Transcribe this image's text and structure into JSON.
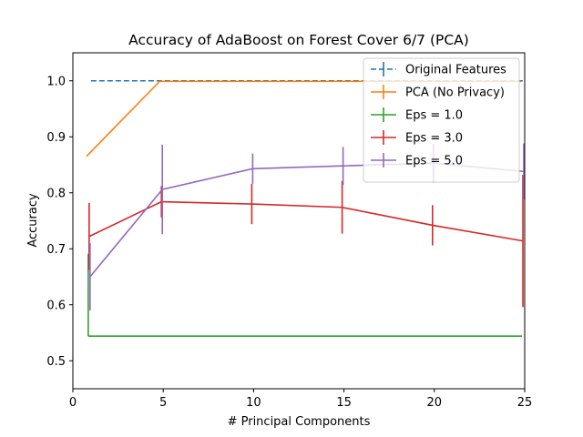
{
  "chart_data": {
    "type": "line",
    "title": "Accuracy of AdaBoost on Forest Cover 6/7 (PCA)",
    "xlabel": "# Principal Components",
    "ylabel": "Accuracy",
    "xlim": [
      0,
      25
    ],
    "ylim": [
      0.45,
      1.05
    ],
    "xticks": [
      0,
      5,
      10,
      15,
      20,
      25
    ],
    "yticks": [
      0.5,
      0.6,
      0.7,
      0.8,
      0.9,
      1.0
    ],
    "grid": false,
    "legend_position": "top-right",
    "series": [
      {
        "name": "Original Features",
        "style": "dashed",
        "color": "#1f77b4",
        "x": [
          1,
          5,
          10,
          15,
          20,
          25
        ],
        "y": [
          1.0,
          1.0,
          1.0,
          1.0,
          1.0,
          1.0
        ],
        "err": [
          0,
          0,
          0,
          0,
          0,
          0
        ]
      },
      {
        "name": "PCA (No Privacy)",
        "style": "solid",
        "color": "#ff7f0e",
        "x": [
          0.75,
          4.8,
          9.8,
          14.8,
          19.8,
          24.8
        ],
        "y": [
          0.865,
          0.999,
          0.999,
          0.999,
          0.999,
          0.999
        ],
        "err": [
          0,
          0,
          0,
          0,
          0,
          0
        ]
      },
      {
        "name": "Eps = 1.0",
        "style": "solid",
        "color": "#2ca02c",
        "x": [
          0.85,
          4.85,
          9.85,
          14.85,
          19.85,
          24.85
        ],
        "y": [
          0.544,
          0.544,
          0.544,
          0.544,
          0.544,
          0.544
        ],
        "err_low": [
          0,
          0,
          0,
          0,
          0,
          0
        ],
        "err_high": [
          0.147,
          0,
          0,
          0,
          0,
          0
        ]
      },
      {
        "name": "Eps = 3.0",
        "style": "solid",
        "color": "#d62728",
        "x": [
          0.9,
          4.9,
          9.9,
          14.9,
          19.9,
          24.9
        ],
        "y": [
          0.722,
          0.784,
          0.78,
          0.774,
          0.742,
          0.714
        ],
        "err": [
          0.06,
          0.028,
          0.036,
          0.047,
          0.036,
          0.118
        ]
      },
      {
        "name": "Eps = 5.0",
        "style": "solid",
        "color": "#9467bd",
        "x": [
          0.95,
          4.95,
          9.95,
          14.95,
          19.95,
          24.95
        ],
        "y": [
          0.65,
          0.806,
          0.843,
          0.848,
          0.853,
          0.838
        ],
        "err": [
          0.06,
          0.08,
          0.027,
          0.034,
          0.035,
          0.05
        ]
      }
    ]
  }
}
